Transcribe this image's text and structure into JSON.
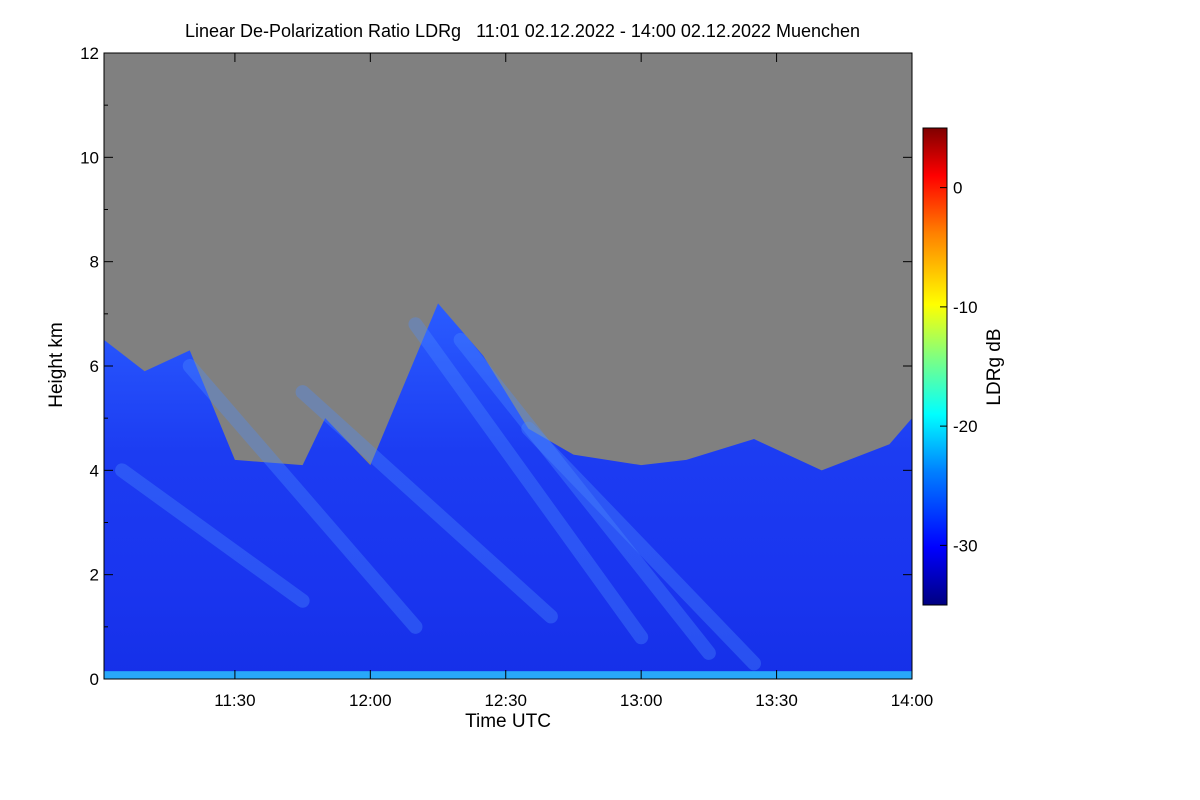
{
  "title": "Linear De-Polarization Ratio LDRg   11:01 02.12.2022 - 14:00 02.12.2022 Muenchen",
  "chart_data": {
    "type": "heatmap",
    "title": "Linear De-Polarization Ratio LDRg   11:01 02.12.2022 - 14:00 02.12.2022 Muenchen",
    "xlabel": "Time UTC",
    "ylabel": "Height km",
    "x_range": [
      "11:01",
      "14:00"
    ],
    "x_ticks": [
      {
        "label": "11:30",
        "value": "11:30"
      },
      {
        "label": "12:00",
        "value": "12:00"
      },
      {
        "label": "12:30",
        "value": "12:30"
      },
      {
        "label": "13:00",
        "value": "13:00"
      },
      {
        "label": "13:30",
        "value": "13:30"
      },
      {
        "label": "14:00",
        "value": "14:00"
      }
    ],
    "y_range": [
      0,
      12
    ],
    "y_ticks": [
      0,
      2,
      4,
      6,
      8,
      10,
      12
    ],
    "colorbar": {
      "label": "LDRg dB",
      "range": [
        -35,
        5
      ],
      "ticks": [
        0,
        -10,
        -20,
        -30
      ],
      "colormap": "rainbow (dark blue to dark red)"
    },
    "no_data_color": "#808080",
    "cloud_top_km": [
      {
        "time": "11:01",
        "top": 6.5
      },
      {
        "time": "11:10",
        "top": 5.9
      },
      {
        "time": "11:20",
        "top": 6.3
      },
      {
        "time": "11:30",
        "top": 4.2
      },
      {
        "time": "11:45",
        "top": 4.1
      },
      {
        "time": "11:50",
        "top": 5.0
      },
      {
        "time": "12:00",
        "top": 4.1
      },
      {
        "time": "12:15",
        "top": 7.2
      },
      {
        "time": "12:25",
        "top": 6.2
      },
      {
        "time": "12:35",
        "top": 4.8
      },
      {
        "time": "12:45",
        "top": 4.3
      },
      {
        "time": "13:00",
        "top": 4.1
      },
      {
        "time": "13:10",
        "top": 4.2
      },
      {
        "time": "13:25",
        "top": 4.6
      },
      {
        "time": "13:40",
        "top": 4.0
      },
      {
        "time": "13:55",
        "top": 4.5
      },
      {
        "time": "14:00",
        "top": 5.0
      }
    ]
  }
}
